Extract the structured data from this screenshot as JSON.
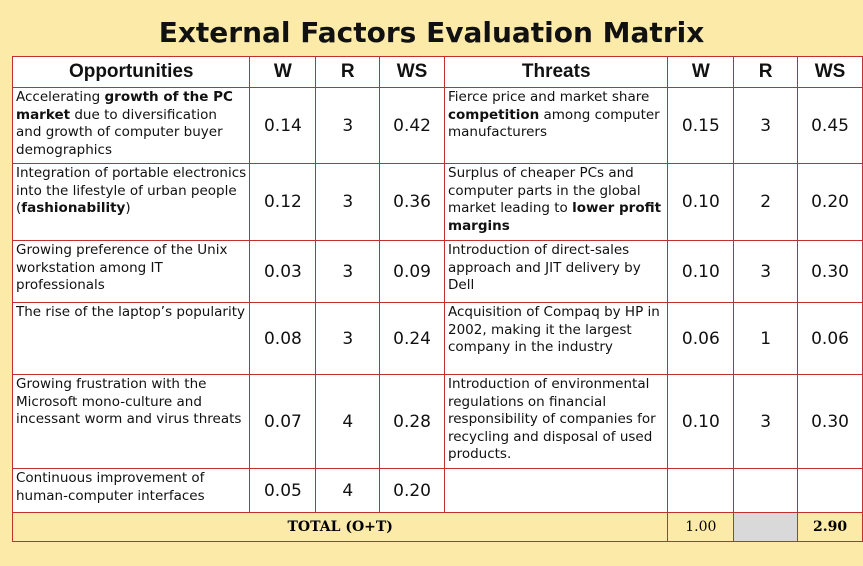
{
  "title": "External Factors Evaluation Matrix",
  "headers": {
    "opportunities": "Opportunities",
    "w1": "W",
    "r1": "R",
    "ws1": "WS",
    "threats": "Threats",
    "w2": "W",
    "r2": "R",
    "ws2": "WS"
  },
  "rows": [
    {
      "opp": [
        {
          "t": "Accelerating "
        },
        {
          "t": "growth of the PC market",
          "b": true
        },
        {
          "t": " due to diversification and growth of computer buyer demographics"
        }
      ],
      "ow": "0.14",
      "or": "3",
      "ows": "0.42",
      "thr": [
        {
          "t": "Fierce price and market share "
        },
        {
          "t": "competition",
          "b": true
        },
        {
          "t": " among computer manufacturers"
        }
      ],
      "tw": "0.15",
      "tr": "3",
      "tws": "0.45"
    },
    {
      "opp": [
        {
          "t": "Integration of portable electronics into the lifestyle of urban people ("
        },
        {
          "t": "fashionability",
          "b": true
        },
        {
          "t": ")"
        }
      ],
      "ow": "0.12",
      "or": "3",
      "ows": "0.36",
      "thr": [
        {
          "t": "Surplus of cheaper PCs and computer parts in the global market leading to "
        },
        {
          "t": "lower profit margins",
          "b": true
        }
      ],
      "tw": "0.10",
      "tr": "2",
      "tws": "0.20"
    },
    {
      "opp": [
        {
          "t": "Growing preference of the Unix workstation among IT professionals"
        }
      ],
      "ow": "0.03",
      "or": "3",
      "ows": "0.09",
      "thr": [
        {
          "t": "Introduction of direct-sales approach and JIT delivery by Dell"
        }
      ],
      "tw": "0.10",
      "tr": "3",
      "tws": "0.30"
    },
    {
      "opp": [
        {
          "t": "The rise of the laptop’s popularity"
        }
      ],
      "ow": "0.08",
      "or": "3",
      "ows": "0.24",
      "thr": [
        {
          "t": "Acquisition of Compaq by HP in 2002, making it the largest company in the industry"
        }
      ],
      "tw": "0.06",
      "tr": "1",
      "tws": "0.06"
    },
    {
      "opp": [
        {
          "t": "Growing frustration with the Microsoft mono-culture and incessant worm and virus threats"
        }
      ],
      "ow": "0.07",
      "or": "4",
      "ows": "0.28",
      "thr": [
        {
          "t": "Introduction of environmental regulations on financial responsibility of companies for recycling and disposal of used products."
        }
      ],
      "tw": "0.10",
      "tr": "3",
      "tws": "0.30"
    },
    {
      "opp": [
        {
          "t": "Continuous improvement of human-computer interfaces"
        }
      ],
      "ow": "0.05",
      "or": "4",
      "ows": "0.20",
      "thr": [],
      "tw": "",
      "tr": "",
      "tws": ""
    }
  ],
  "total": {
    "label": "TOTAL (O+T)",
    "w": "1.00",
    "ws": "2.90"
  }
}
